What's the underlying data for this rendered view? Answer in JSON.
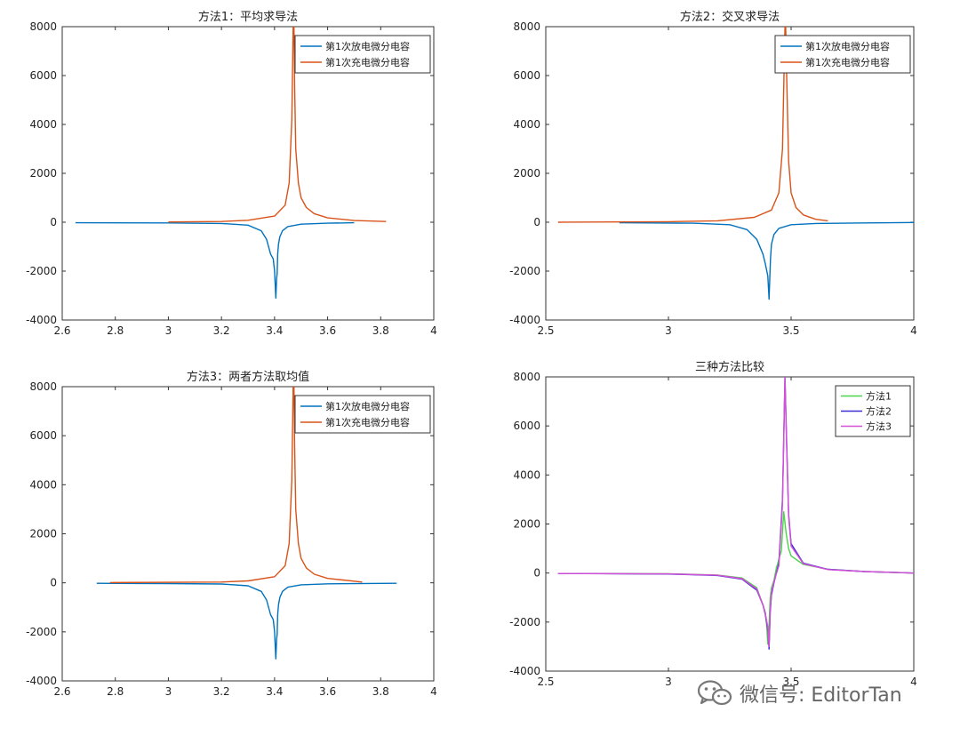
{
  "chart_data": [
    {
      "type": "line",
      "title": "方法1：平均求导法",
      "xlim": [
        2.6,
        4.0
      ],
      "ylim": [
        -4000,
        8000
      ],
      "xticks": [
        "2.6",
        "2.8",
        "3",
        "3.2",
        "3.4",
        "3.6",
        "3.8",
        "4"
      ],
      "yticks": [
        "-4000",
        "-2000",
        "0",
        "2000",
        "4000",
        "6000",
        "8000"
      ],
      "legend_position": "top-right",
      "series": [
        {
          "name": "第1次放电微分电容",
          "color": "#0072BD",
          "x": [
            2.65,
            3.0,
            3.2,
            3.3,
            3.35,
            3.37,
            3.385,
            3.395,
            3.4,
            3.405,
            3.408,
            3.41,
            3.412,
            3.415,
            3.42,
            3.43,
            3.45,
            3.5,
            3.6,
            3.7
          ],
          "y": [
            -20,
            -30,
            -50,
            -120,
            -350,
            -700,
            -1300,
            -1500,
            -2000,
            -3100,
            -2300,
            -2100,
            -1300,
            -900,
            -600,
            -350,
            -180,
            -80,
            -40,
            -20
          ]
        },
        {
          "name": "第1次充电微分电容",
          "color": "#D95319",
          "x": [
            3.0,
            3.2,
            3.3,
            3.4,
            3.44,
            3.455,
            3.465,
            3.47,
            3.473,
            3.476,
            3.48,
            3.49,
            3.5,
            3.52,
            3.55,
            3.6,
            3.7,
            3.82
          ],
          "y": [
            10,
            30,
            80,
            250,
            700,
            1600,
            4200,
            8000,
            8000,
            5500,
            3000,
            1600,
            1000,
            600,
            350,
            180,
            70,
            30
          ]
        }
      ]
    },
    {
      "type": "line",
      "title": "方法2：交叉求导法",
      "xlim": [
        2.5,
        4.0
      ],
      "ylim": [
        -4000,
        8000
      ],
      "xticks": [
        "2.5",
        "3",
        "3.5",
        "4"
      ],
      "yticks": [
        "-4000",
        "-2000",
        "0",
        "2000",
        "4000",
        "6000",
        "8000"
      ],
      "legend_position": "top-right",
      "series": [
        {
          "name": "第1次放电微分电容",
          "color": "#0072BD",
          "x": [
            2.8,
            3.1,
            3.25,
            3.32,
            3.36,
            3.385,
            3.395,
            3.405,
            3.41,
            3.413,
            3.416,
            3.42,
            3.43,
            3.45,
            3.5,
            3.6,
            3.8,
            4.0
          ],
          "y": [
            -20,
            -40,
            -100,
            -300,
            -700,
            -1300,
            -1700,
            -2200,
            -3150,
            -2300,
            -1500,
            -900,
            -500,
            -250,
            -100,
            -50,
            -30,
            -10
          ]
        },
        {
          "name": "第1次充电微分电容",
          "color": "#D95319",
          "x": [
            2.55,
            3.0,
            3.2,
            3.35,
            3.42,
            3.45,
            3.465,
            3.475,
            3.478,
            3.482,
            3.49,
            3.5,
            3.52,
            3.55,
            3.6,
            3.65
          ],
          "y": [
            0,
            20,
            60,
            200,
            500,
            1200,
            3000,
            8000,
            8000,
            6000,
            2500,
            1200,
            600,
            300,
            120,
            60
          ]
        }
      ]
    },
    {
      "type": "line",
      "title": "方法3：两者方法取均值",
      "xlim": [
        2.6,
        4.0
      ],
      "ylim": [
        -4000,
        8000
      ],
      "xticks": [
        "2.6",
        "2.8",
        "3",
        "3.2",
        "3.4",
        "3.6",
        "3.8",
        "4"
      ],
      "yticks": [
        "-4000",
        "-2000",
        "0",
        "2000",
        "4000",
        "6000",
        "8000"
      ],
      "legend_position": "top-right",
      "series": [
        {
          "name": "第1次放电微分电容",
          "color": "#0072BD",
          "x": [
            2.73,
            3.0,
            3.2,
            3.3,
            3.35,
            3.37,
            3.385,
            3.395,
            3.4,
            3.405,
            3.408,
            3.41,
            3.412,
            3.415,
            3.42,
            3.43,
            3.45,
            3.5,
            3.6,
            3.86
          ],
          "y": [
            -20,
            -30,
            -50,
            -120,
            -350,
            -700,
            -1300,
            -1500,
            -2000,
            -3100,
            -2300,
            -2100,
            -1300,
            -900,
            -600,
            -350,
            -180,
            -80,
            -40,
            -20
          ]
        },
        {
          "name": "第1次充电微分电容",
          "color": "#D95319",
          "x": [
            2.78,
            3.0,
            3.2,
            3.3,
            3.4,
            3.44,
            3.455,
            3.465,
            3.47,
            3.473,
            3.476,
            3.48,
            3.49,
            3.5,
            3.52,
            3.55,
            3.6,
            3.73
          ],
          "y": [
            10,
            20,
            30,
            80,
            250,
            700,
            1600,
            4200,
            8000,
            8000,
            5500,
            3000,
            1600,
            1000,
            600,
            350,
            180,
            30
          ]
        }
      ]
    },
    {
      "type": "line",
      "title": "三种方法比较",
      "xlim": [
        2.5,
        4.0
      ],
      "ylim": [
        -4000,
        8000
      ],
      "xticks": [
        "2.5",
        "3",
        "3.5",
        "4"
      ],
      "yticks": [
        "-4000",
        "-2000",
        "0",
        "2000",
        "4000",
        "6000",
        "8000"
      ],
      "legend_position": "top-right",
      "series": [
        {
          "name": "方法1",
          "color": "#4DD34D",
          "x": [
            2.55,
            3.0,
            3.2,
            3.3,
            3.36,
            3.385,
            3.395,
            3.4,
            3.405,
            3.41,
            3.415,
            3.42,
            3.43,
            3.44,
            3.46,
            3.47,
            3.48,
            3.49,
            3.5,
            3.55,
            3.65,
            3.8,
            4.0
          ],
          "y": [
            -20,
            -30,
            -80,
            -200,
            -600,
            -1300,
            -1600,
            -2100,
            -2900,
            -2100,
            -1000,
            -600,
            -300,
            200,
            900,
            2500,
            1600,
            1000,
            700,
            350,
            150,
            60,
            0
          ]
        },
        {
          "name": "方法2",
          "color": "#3A2FD6",
          "x": [
            2.55,
            3.0,
            3.2,
            3.3,
            3.36,
            3.385,
            3.395,
            3.405,
            3.41,
            3.415,
            3.42,
            3.43,
            3.45,
            3.465,
            3.475,
            3.48,
            3.49,
            3.5,
            3.55,
            3.65,
            3.8,
            4.0
          ],
          "y": [
            -20,
            -40,
            -100,
            -250,
            -700,
            -1300,
            -1700,
            -2300,
            -3100,
            -1600,
            -900,
            -400,
            400,
            3000,
            8000,
            6000,
            2400,
            1200,
            400,
            150,
            60,
            0
          ]
        },
        {
          "name": "方法3",
          "color": "#D64FD6",
          "x": [
            2.55,
            3.0,
            3.2,
            3.3,
            3.36,
            3.385,
            3.395,
            3.405,
            3.41,
            3.415,
            3.42,
            3.43,
            3.45,
            3.465,
            3.475,
            3.48,
            3.49,
            3.5,
            3.55,
            3.65,
            3.8,
            4.0
          ],
          "y": [
            -20,
            -35,
            -90,
            -230,
            -650,
            -1300,
            -1650,
            -2200,
            -3000,
            -1500,
            -800,
            -350,
            300,
            2800,
            8000,
            5800,
            2300,
            1100,
            380,
            140,
            60,
            0
          ]
        }
      ]
    }
  ],
  "watermark": {
    "icon": "wechat-icon",
    "text": "微信号: EditorTan"
  }
}
